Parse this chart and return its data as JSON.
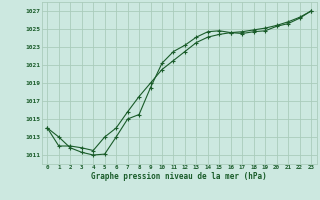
{
  "title": "Graphe pression niveau de la mer (hPa)",
  "bg_color": "#cce8e0",
  "grid_color": "#aaccbb",
  "line_color": "#1a5c2a",
  "text_color": "#1a5c2a",
  "xlim": [
    -0.5,
    23.5
  ],
  "ylim": [
    1010.0,
    1028.0
  ],
  "xtick_positions": [
    0,
    1,
    2,
    3,
    4,
    5,
    6,
    7,
    8,
    9,
    10,
    11,
    12,
    13,
    14,
    15,
    16,
    17,
    18,
    19,
    20,
    21,
    22,
    23
  ],
  "xtick_labels": [
    "0",
    "1",
    "2",
    "3",
    "4",
    "5",
    "6",
    "7",
    "8",
    "9",
    "10",
    "11",
    "12",
    "13",
    "14",
    "15",
    "16",
    "17",
    "18",
    "19",
    "20",
    "21",
    "22",
    "23"
  ],
  "ytick_values": [
    1011,
    1013,
    1015,
    1017,
    1019,
    1021,
    1023,
    1025,
    1027
  ],
  "line1_x": [
    0,
    1,
    2,
    3,
    4,
    5,
    6,
    7,
    8,
    9,
    10,
    11,
    12,
    13,
    14,
    15,
    16,
    17,
    18,
    19,
    20,
    21,
    22,
    23
  ],
  "line1_y": [
    1014.0,
    1013.0,
    1011.8,
    1011.3,
    1011.0,
    1011.1,
    1013.0,
    1015.0,
    1015.5,
    1018.5,
    1021.2,
    1022.5,
    1023.2,
    1024.1,
    1024.7,
    1024.8,
    1024.6,
    1024.5,
    1024.7,
    1024.8,
    1025.3,
    1025.6,
    1026.2,
    1027.0
  ],
  "line2_x": [
    0,
    1,
    2,
    3,
    4,
    5,
    6,
    7,
    8,
    9,
    10,
    11,
    12,
    13,
    14,
    15,
    16,
    17,
    18,
    19,
    20,
    21,
    22,
    23
  ],
  "line2_y": [
    1014.0,
    1012.0,
    1012.0,
    1011.8,
    1011.5,
    1013.0,
    1014.0,
    1015.8,
    1017.5,
    1019.0,
    1020.5,
    1021.5,
    1022.5,
    1023.5,
    1024.1,
    1024.4,
    1024.6,
    1024.7,
    1024.9,
    1025.1,
    1025.4,
    1025.8,
    1026.3,
    1027.0
  ]
}
